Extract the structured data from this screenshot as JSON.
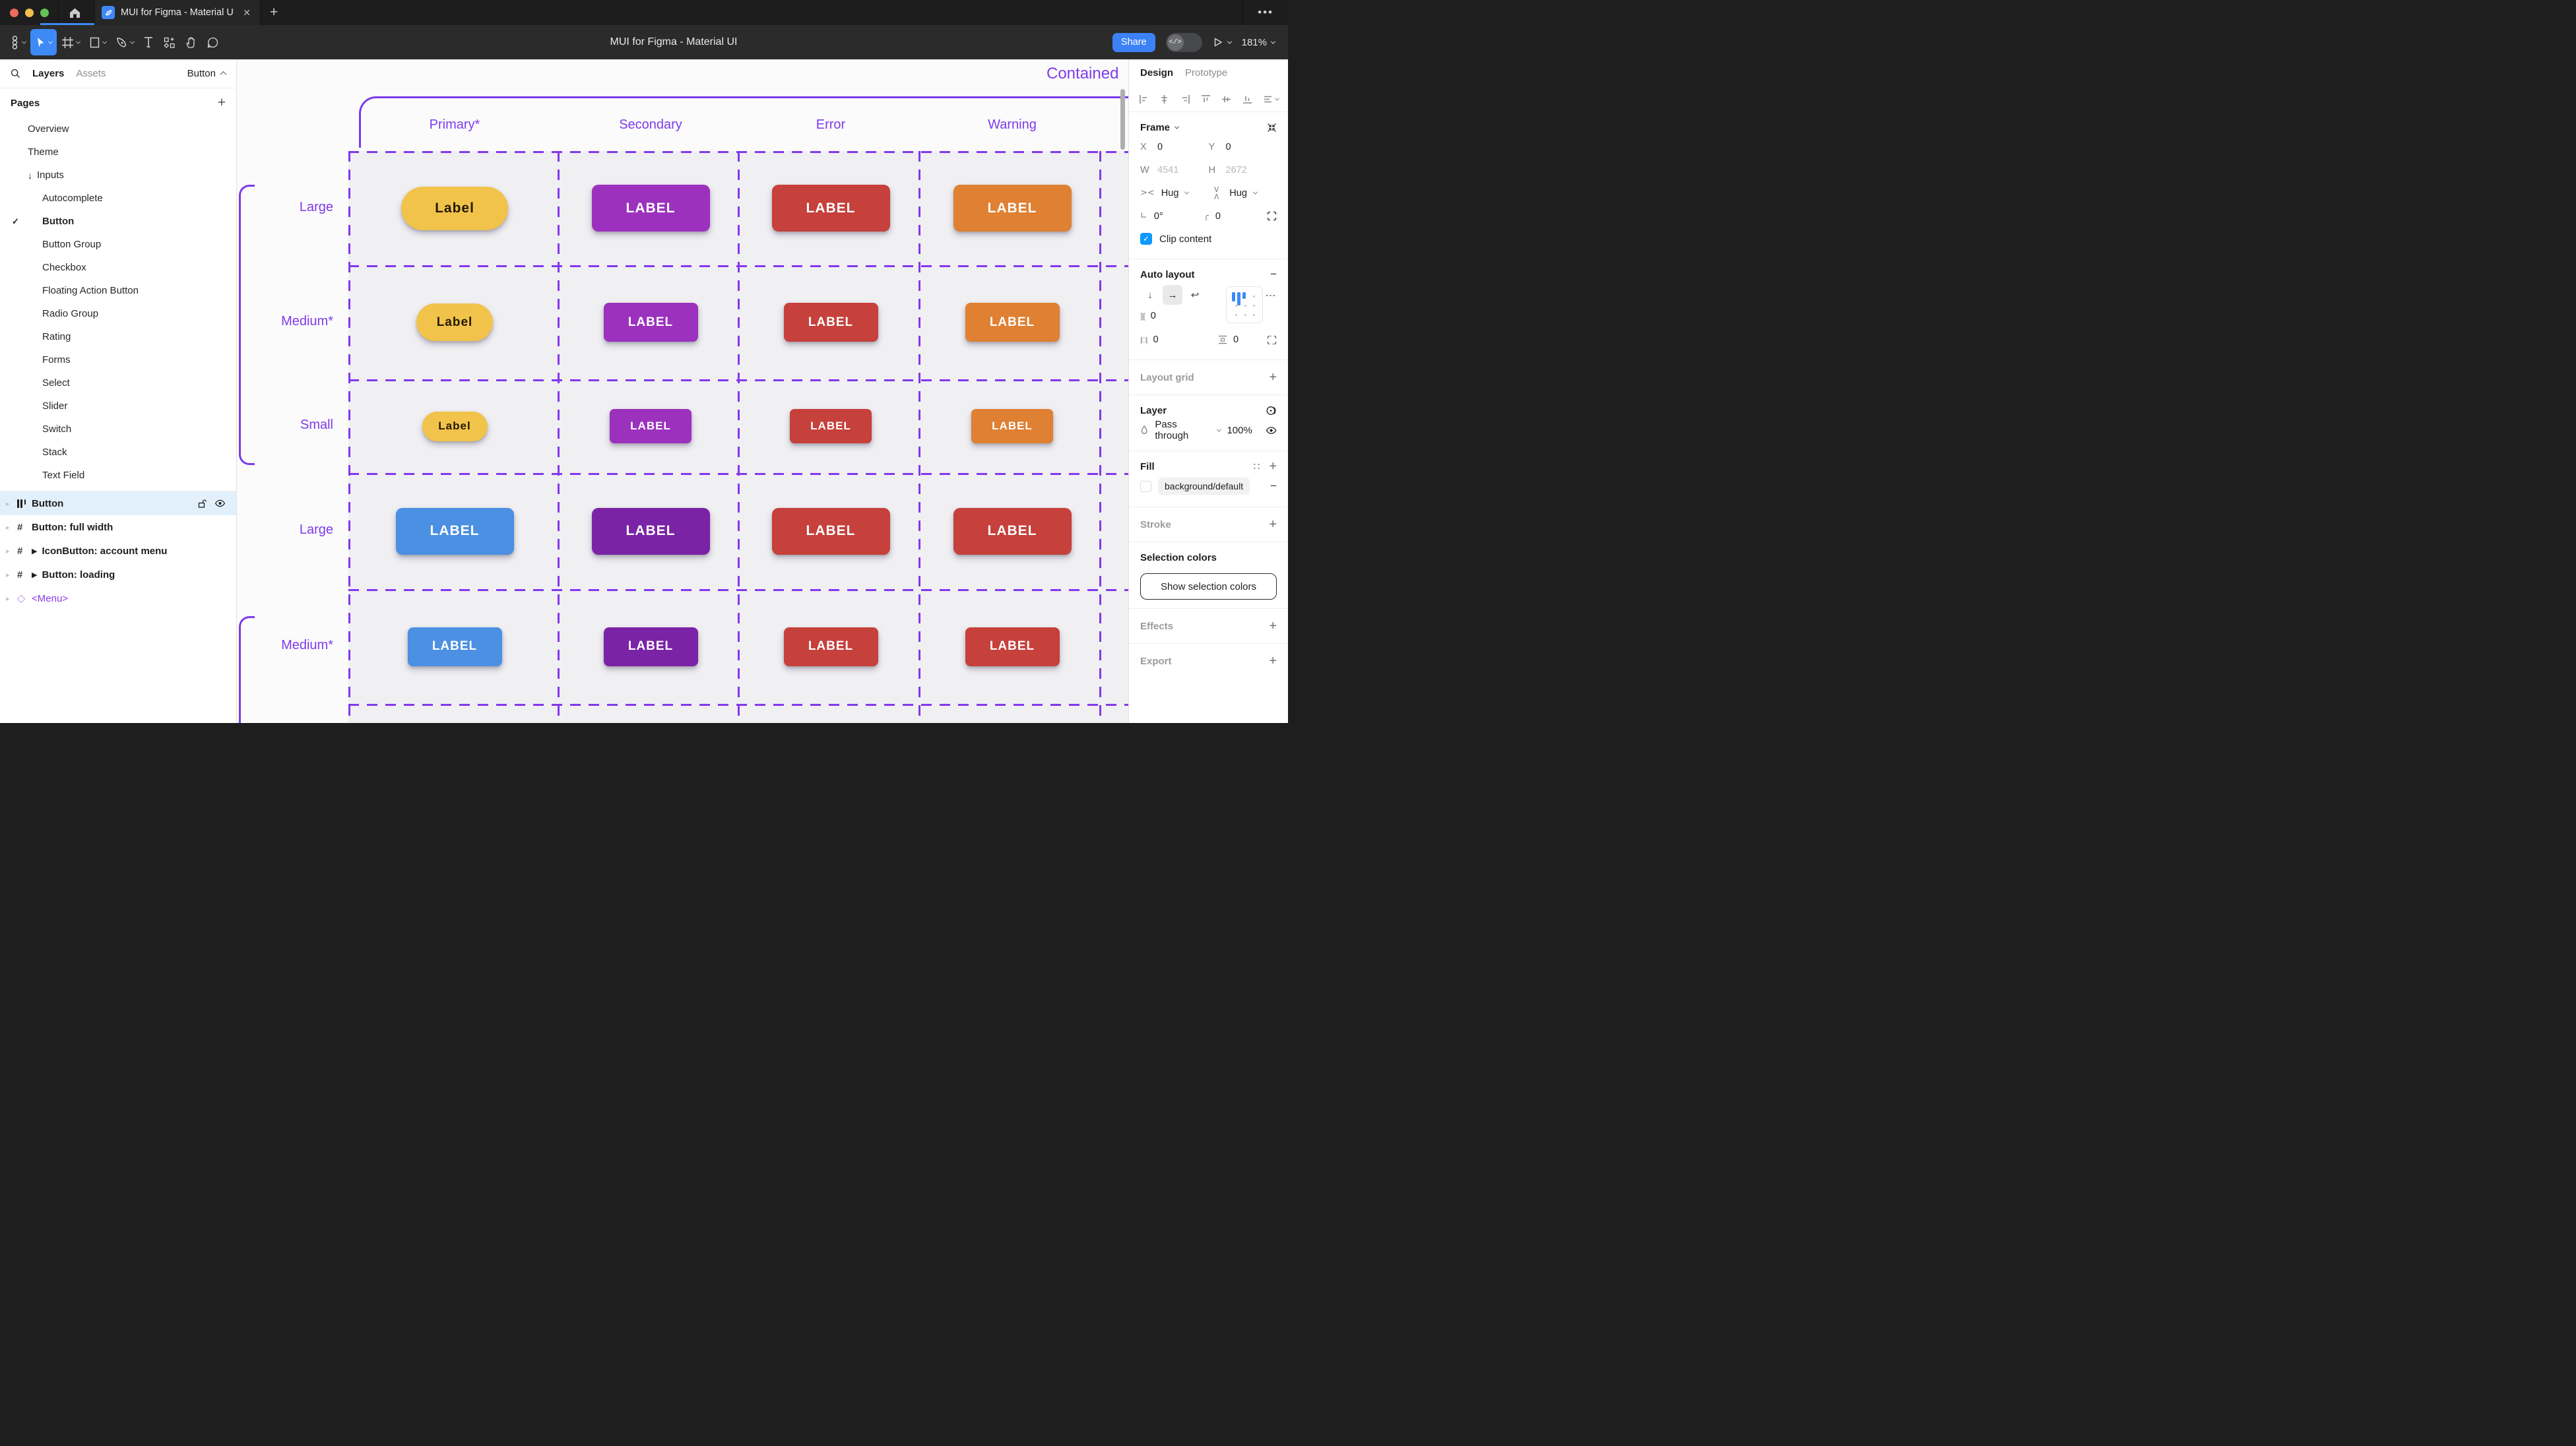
{
  "window": {
    "tab_title": "MUI for Figma - Material UI",
    "close_glyph": "✕",
    "new_tab_glyph": "+",
    "overflow_glyph": "•••"
  },
  "toolbar": {
    "title": "MUI for Figma - Material UI",
    "share_label": "Share",
    "dev_toggle_glyph": "</>",
    "zoom_level": "181%"
  },
  "sidebar": {
    "tabs": {
      "layers": "Layers",
      "assets": "Assets"
    },
    "page_selector": "Button",
    "pages_header": "Pages",
    "pages": [
      {
        "label": "Overview",
        "indent": 1
      },
      {
        "label": "Theme",
        "indent": 1
      },
      {
        "label": "Inputs",
        "indent": 1,
        "prefix": "↓"
      },
      {
        "label": "Autocomplete",
        "indent": 2
      },
      {
        "label": "Button",
        "indent": 2,
        "checked": true,
        "bold": true
      },
      {
        "label": "Button Group",
        "indent": 2
      },
      {
        "label": "Checkbox",
        "indent": 2
      },
      {
        "label": "Floating Action Button",
        "indent": 2
      },
      {
        "label": "Radio Group",
        "indent": 2
      },
      {
        "label": "Rating",
        "indent": 2
      },
      {
        "label": "Forms",
        "indent": 2
      },
      {
        "label": "Select",
        "indent": 2
      },
      {
        "label": "Slider",
        "indent": 2
      },
      {
        "label": "Switch",
        "indent": 2
      },
      {
        "label": "Stack",
        "indent": 2
      },
      {
        "label": "Text Field",
        "indent": 2
      }
    ],
    "layers": [
      {
        "label": "Button",
        "icon": "autolayout",
        "selected": true
      },
      {
        "label": "Button: full width",
        "icon": "frame"
      },
      {
        "label": "IconButton: account menu",
        "icon": "frame",
        "expand": true
      },
      {
        "label": "Button: loading",
        "icon": "frame",
        "expand": true
      },
      {
        "label": "<Menu>",
        "icon": "component",
        "purple": true
      }
    ]
  },
  "canvas": {
    "frame_title": "Contained",
    "columns": [
      "Primary*",
      "Secondary",
      "Error",
      "Warning"
    ],
    "rows": [
      {
        "label": "Large",
        "size": "lg",
        "buttons": [
          {
            "label": "Label",
            "bg": "#F2C34A",
            "fg": "#221A06",
            "pill": true
          },
          {
            "label": "LABEL",
            "bg": "#9C31BE",
            "fg": "#FFFFFF"
          },
          {
            "label": "LABEL",
            "bg": "#C6403C",
            "fg": "#FFFFFF"
          },
          {
            "label": "LABEL",
            "bg": "#DF8032",
            "fg": "#FFFFFF"
          }
        ]
      },
      {
        "label": "Medium*",
        "size": "md",
        "buttons": [
          {
            "label": "Label",
            "bg": "#F2C34A",
            "fg": "#221A06",
            "pill": true
          },
          {
            "label": "LABEL",
            "bg": "#9C31BE",
            "fg": "#FFFFFF"
          },
          {
            "label": "LABEL",
            "bg": "#C6403C",
            "fg": "#FFFFFF"
          },
          {
            "label": "LABEL",
            "bg": "#DF8032",
            "fg": "#FFFFFF"
          }
        ]
      },
      {
        "label": "Small",
        "size": "sm",
        "buttons": [
          {
            "label": "Label",
            "bg": "#F2C34A",
            "fg": "#221A06",
            "pill": true
          },
          {
            "label": "LABEL",
            "bg": "#9C31BE",
            "fg": "#FFFFFF"
          },
          {
            "label": "LABEL",
            "bg": "#C6403C",
            "fg": "#FFFFFF"
          },
          {
            "label": "LABEL",
            "bg": "#DF8032",
            "fg": "#FFFFFF"
          }
        ]
      },
      {
        "label": "Large",
        "size": "lg",
        "buttons": [
          {
            "label": "LABEL",
            "bg": "#4B90E2",
            "fg": "#FFFFFF"
          },
          {
            "label": "LABEL",
            "bg": "#7B23A6",
            "fg": "#FFFFFF"
          },
          {
            "label": "LABEL",
            "bg": "#C6403C",
            "fg": "#FFFFFF"
          },
          {
            "label": "LABEL",
            "bg": "#C6403C",
            "fg": "#FFFFFF"
          }
        ]
      },
      {
        "label": "Medium*",
        "size": "md",
        "buttons": [
          {
            "label": "LABEL",
            "bg": "#4B90E2",
            "fg": "#FFFFFF"
          },
          {
            "label": "LABEL",
            "bg": "#7B23A6",
            "fg": "#FFFFFF"
          },
          {
            "label": "LABEL",
            "bg": "#C6403C",
            "fg": "#FFFFFF"
          },
          {
            "label": "LABEL",
            "bg": "#C6403C",
            "fg": "#FFFFFF"
          }
        ]
      }
    ]
  },
  "inspector": {
    "tabs": {
      "design": "Design",
      "prototype": "Prototype"
    },
    "frame": {
      "title": "Frame",
      "x_label": "X",
      "x": "0",
      "y_label": "Y",
      "y": "0",
      "w_label": "W",
      "w": "4541",
      "h_label": "H",
      "h": "2672",
      "hug_h": "Hug",
      "hug_v": "Hug",
      "rotation": "0°",
      "radius": "0",
      "clip_label": "Clip content"
    },
    "auto_layout": {
      "title": "Auto layout",
      "gap": "0",
      "padding_h": "0",
      "padding_v": "0"
    },
    "layout_grid": {
      "title": "Layout grid"
    },
    "layer": {
      "title": "Layer",
      "blend_mode": "Pass through",
      "opacity": "100%"
    },
    "fill": {
      "title": "Fill",
      "style_name": "background/default"
    },
    "stroke": {
      "title": "Stroke"
    },
    "selection_colors": {
      "title": "Selection colors",
      "button_label": "Show selection colors"
    },
    "effects": {
      "title": "Effects"
    },
    "export": {
      "title": "Export"
    }
  },
  "colors": {
    "accent_blue": "#3D8AF7",
    "figma_purple": "#7D3BEB",
    "dash_purple": "#8338EC",
    "checkbox_blue": "#0D99FF",
    "selected_row_blue": "#E2F0FC",
    "canvas_cell_gray": "#F0EFF2"
  },
  "glyphs": {
    "hash": "#",
    "diamond": "◇",
    "check": "✓",
    "down_arrow": "↓",
    "right_arrow": "→",
    "wrap": "↩",
    "gap": "]|[",
    "pad_h": "|□|",
    "styles_dots": "∷",
    "more": "⋯",
    "rotation_icon": "∟",
    "radius_icon": "╭",
    "hug_icon": "><",
    "inputs_arrow": "↓",
    "expand_tri": "▶",
    "disclosure": "▸",
    "plus": "+",
    "minus": "−"
  }
}
